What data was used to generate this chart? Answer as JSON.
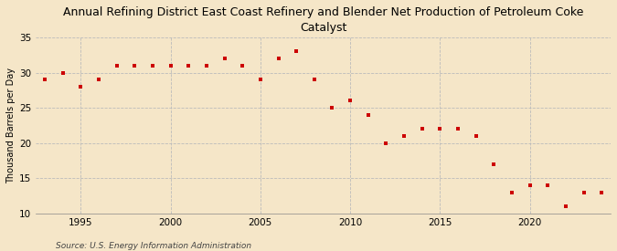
{
  "title": "Annual Refining District East Coast Refinery and Blender Net Production of Petroleum Coke\nCatalyst",
  "ylabel": "Thousand Barrels per Day",
  "source": "Source: U.S. Energy Information Administration",
  "background_color": "#f5e6c8",
  "plot_background_color": "#f5e6c8",
  "marker_color": "#cc0000",
  "marker": "s",
  "marker_size": 3.5,
  "ylim": [
    10,
    35
  ],
  "yticks": [
    10,
    15,
    20,
    25,
    30,
    35
  ],
  "xlim": [
    1992.5,
    2024.5
  ],
  "xticks": [
    1995,
    2000,
    2005,
    2010,
    2015,
    2020
  ],
  "grid_color": "#bbbbbb",
  "years": [
    1993,
    1994,
    1995,
    1996,
    1997,
    1998,
    1999,
    2000,
    2001,
    2002,
    2003,
    2004,
    2005,
    2006,
    2007,
    2008,
    2009,
    2010,
    2011,
    2012,
    2013,
    2014,
    2015,
    2016,
    2017,
    2018,
    2019,
    2020,
    2021,
    2022,
    2023,
    2024
  ],
  "values": [
    29.0,
    30.0,
    28.0,
    29.0,
    31.0,
    31.0,
    31.0,
    31.0,
    31.0,
    31.0,
    32.0,
    31.0,
    29.0,
    32.0,
    33.0,
    29.0,
    25.0,
    26.0,
    24.0,
    20.0,
    21.0,
    22.0,
    22.0,
    22.0,
    21.0,
    17.0,
    13.0,
    14.0,
    14.0,
    11.0,
    13.0,
    13.0
  ]
}
